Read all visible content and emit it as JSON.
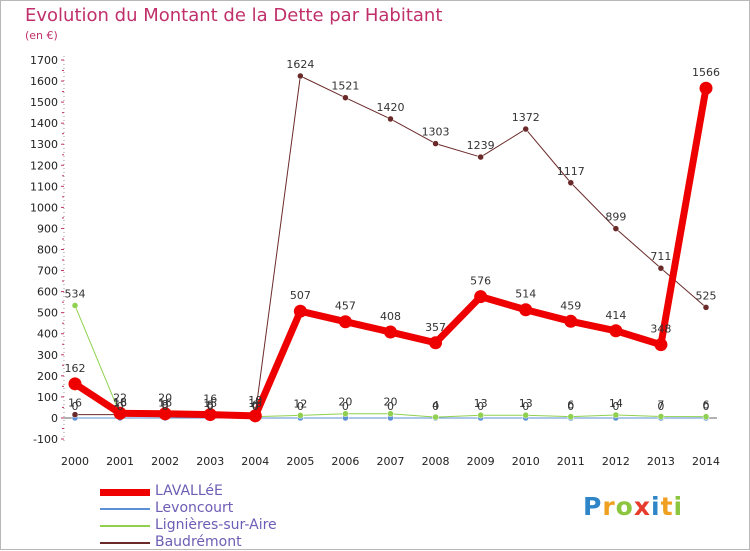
{
  "header": {
    "title": "Evolution du Montant de la Dette par Habitant",
    "unit": "(en €)"
  },
  "brand": {
    "letters": [
      {
        "ch": "P",
        "color": "#2e86c8"
      },
      {
        "ch": "r",
        "color": "#f0a020"
      },
      {
        "ch": "o",
        "color": "#8cc63f"
      },
      {
        "ch": "x",
        "color": "#e63c2e"
      },
      {
        "ch": "i",
        "color": "#2e86c8"
      },
      {
        "ch": "t",
        "color": "#f0a020"
      },
      {
        "ch": "i",
        "color": "#8cc63f"
      }
    ]
  },
  "chart_data": {
    "type": "line",
    "title": "Evolution du Montant de la Dette par Habitant",
    "ylabel": "(en €)",
    "xlabel": "",
    "x": [
      "2000",
      "2001",
      "2002",
      "2003",
      "2004",
      "2005",
      "2006",
      "2007",
      "2008",
      "2009",
      "2010",
      "2011",
      "2012",
      "2013",
      "2014"
    ],
    "ylim": [
      -100,
      1700
    ],
    "yticks": [
      -100,
      0,
      100,
      200,
      300,
      400,
      500,
      600,
      700,
      800,
      900,
      1000,
      1100,
      1200,
      1300,
      1400,
      1500,
      1600,
      1700
    ],
    "grid": false,
    "legend_position": "bottom-left",
    "series": [
      {
        "name": "LAVALLéE",
        "color": "#ee0000",
        "emphasis": true,
        "values": [
          162,
          22,
          20,
          16,
          10,
          507,
          457,
          408,
          357,
          576,
          514,
          459,
          414,
          348,
          1566
        ],
        "labels": [
          "162",
          "22",
          "20",
          "16",
          "10",
          "507",
          "457",
          "408",
          "357",
          "576",
          "514",
          "459",
          "414",
          "348",
          "1566"
        ]
      },
      {
        "name": "Levoncourt",
        "color": "#5b8fd6",
        "emphasis": false,
        "values": [
          0,
          0,
          0,
          0,
          0,
          0,
          0,
          0,
          0,
          0,
          0,
          0,
          0,
          0,
          0
        ],
        "labels": [
          "0",
          "0",
          "0",
          "0",
          "0",
          "0",
          "0",
          "0",
          "0",
          "0",
          "0",
          "0",
          "0",
          "0",
          "0"
        ]
      },
      {
        "name": "Lignières-sur-Aire",
        "color": "#8fd14f",
        "emphasis": false,
        "values": [
          534,
          18,
          9,
          8,
          6,
          12,
          20,
          20,
          4,
          13,
          13,
          6,
          14,
          7,
          6
        ],
        "labels": [
          "534",
          "18",
          "9",
          "8",
          "6",
          "12",
          "20",
          "20",
          "4",
          "13",
          "13",
          "6",
          "14",
          "7",
          "6"
        ]
      },
      {
        "name": "Baudrémont",
        "color": "#6b2a2a",
        "emphasis": false,
        "values": [
          16,
          16,
          16,
          15,
          15,
          1624,
          1521,
          1420,
          1303,
          1239,
          1372,
          1117,
          899,
          711,
          525
        ],
        "labels": [
          "16",
          "16",
          "16",
          "15",
          "15",
          "1624",
          "1521",
          "1420",
          "1303",
          "1239",
          "1372",
          "1117",
          "899",
          "711",
          "525"
        ]
      }
    ]
  }
}
